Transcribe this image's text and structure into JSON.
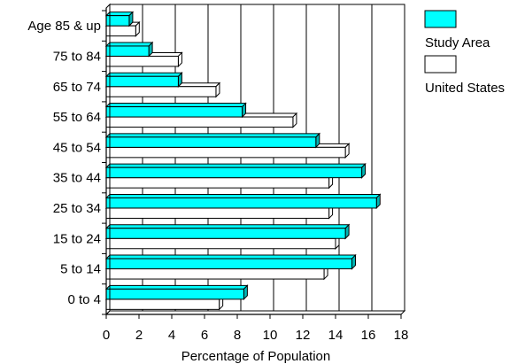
{
  "chart_data": {
    "type": "bar",
    "orientation": "horizontal",
    "title": "",
    "xlabel": "Percentage of Population",
    "ylabel": "",
    "xlim": [
      0,
      18
    ],
    "x_ticks": [
      "0",
      "2",
      "4",
      "6",
      "8",
      "10",
      "12",
      "14",
      "16",
      "18"
    ],
    "grid": "vertical",
    "style": "3d",
    "legend_position": "top-right",
    "categories": [
      "0 to 4",
      "5 to 14",
      "15 to 24",
      "25 to 34",
      "35 to 44",
      "45 to 54",
      "55 to 64",
      "65 to 74",
      "75 to 84",
      "Age 85 & up"
    ],
    "series": [
      {
        "name": "Study Area",
        "color": "#00ffff",
        "values": [
          8.4,
          15.0,
          14.6,
          16.5,
          15.6,
          12.8,
          8.3,
          4.4,
          2.6,
          1.4
        ]
      },
      {
        "name": "United States",
        "color": "#ffffff",
        "values": [
          6.9,
          13.3,
          14.0,
          13.6,
          13.6,
          14.6,
          11.4,
          6.7,
          4.4,
          1.8
        ]
      }
    ]
  }
}
